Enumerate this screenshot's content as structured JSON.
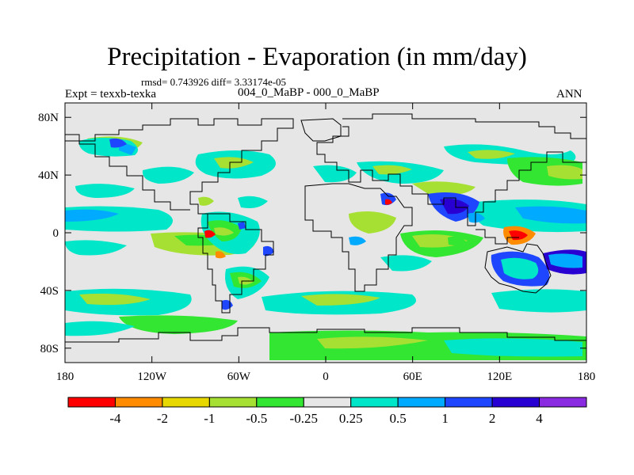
{
  "plot": {
    "title": "Precipitation - Evaporation (in mm/day)",
    "stats_text": "rmsd= 0.743926  diff= 3.33174e-05",
    "experiment_label": "Expt = texxb-texka",
    "subtitle": "004_0_MaBP - 000_0_MaBP",
    "season": "ANN"
  },
  "axes": {
    "x_ticks": [
      {
        "label": "180",
        "lon": -180
      },
      {
        "label": "120W",
        "lon": -120
      },
      {
        "label": "60W",
        "lon": -60
      },
      {
        "label": "0",
        "lon": 0
      },
      {
        "label": "60E",
        "lon": 60
      },
      {
        "label": "120E",
        "lon": 120
      },
      {
        "label": "180",
        "lon": 180
      }
    ],
    "y_ticks": [
      {
        "label": "80N",
        "lat": 80
      },
      {
        "label": "40N",
        "lat": 40
      },
      {
        "label": "0",
        "lat": 0
      },
      {
        "label": "40S",
        "lat": -40
      },
      {
        "label": "80S",
        "lat": -80
      }
    ],
    "lon_range": [
      -180,
      180
    ],
    "lat_range": [
      -90,
      90
    ]
  },
  "colorbar": {
    "colors": [
      "#ff0000",
      "#ff8c00",
      "#e6d800",
      "#a6e032",
      "#32e632",
      "#e6e6e6",
      "#00e6c8",
      "#00aaff",
      "#1e46ff",
      "#2800d2",
      "#8a2be2"
    ],
    "labels": [
      "-4",
      "-2",
      "-1",
      "-0.5",
      "-0.25",
      "0.25",
      "0.5",
      "1",
      "2",
      "4"
    ]
  }
}
